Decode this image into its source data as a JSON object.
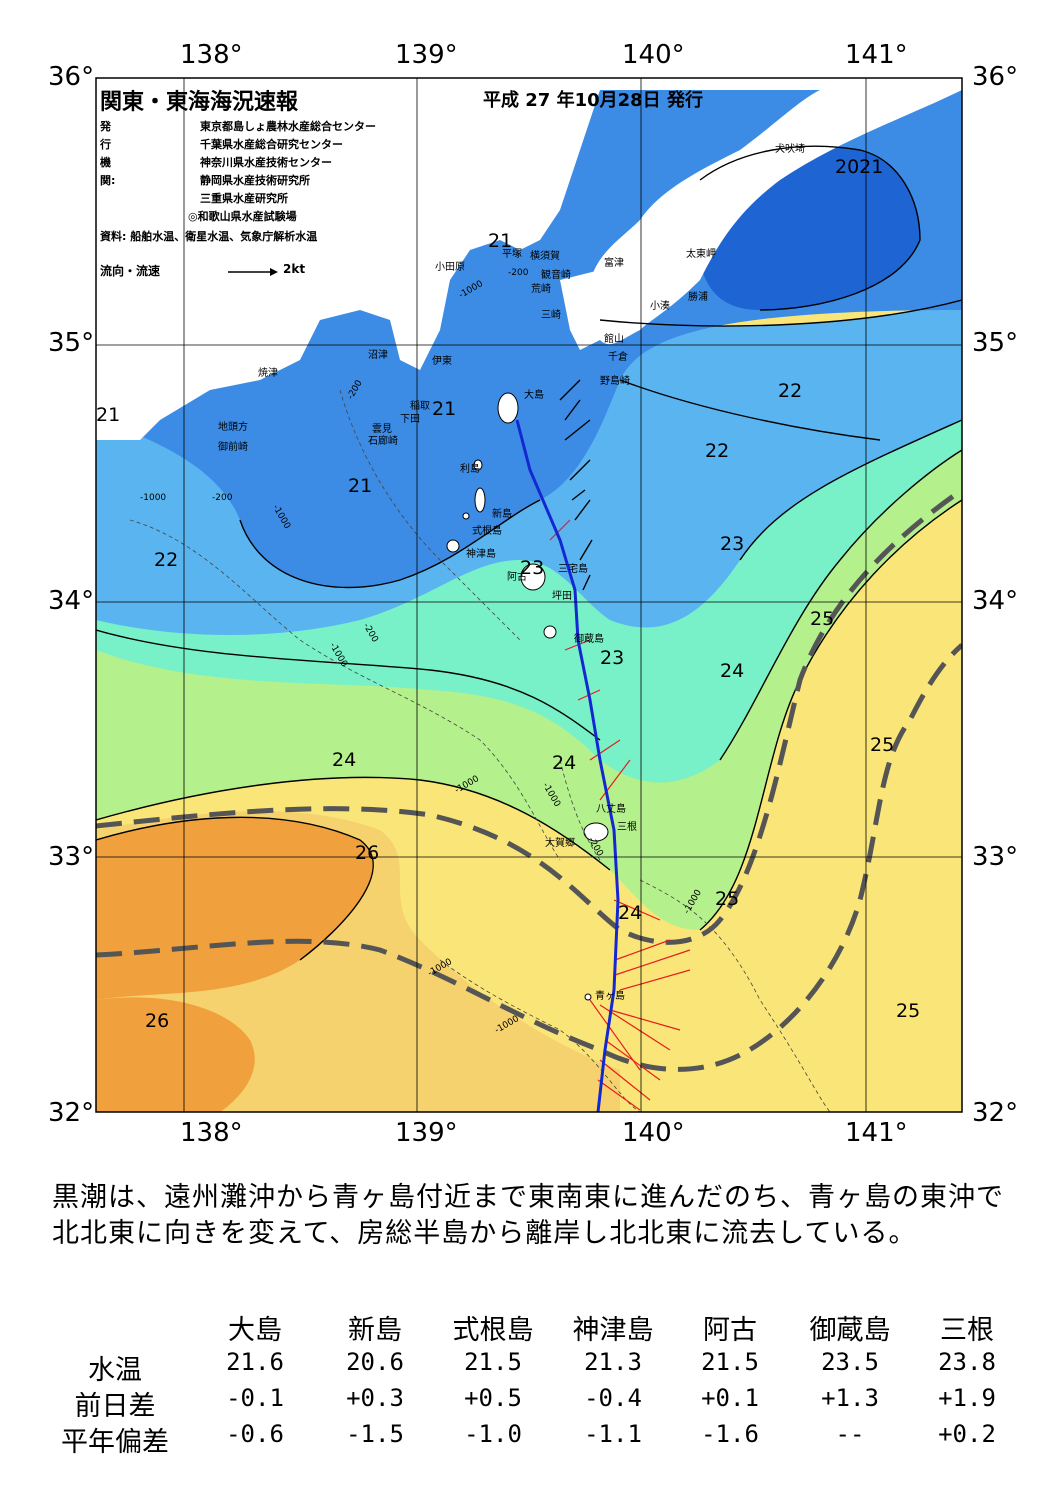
{
  "header": {
    "title": "関東・東海海況速報",
    "date": "平成 27 年10月28日 発行",
    "issuer_label": "発行機関:",
    "issuers": [
      "東京都島しょ農林水産総合センター",
      "千葉県水産総合研究センター",
      "神奈川県水産技術センター",
      "静岡県水産技術研究所",
      "三重県水産研究所",
      "◎和歌山県水産試験場"
    ],
    "source": "資料: 船舶水温、衛星水温、気象庁解析水温",
    "legend_label": "流向・流速",
    "legend_scale": "2kt"
  },
  "map": {
    "lon_ticks": [
      "138°",
      "139°",
      "140°",
      "141°"
    ],
    "lat_ticks": [
      "36°",
      "35°",
      "34°",
      "33°",
      "32°"
    ],
    "colors": {
      "land": "#ffffff",
      "t20": "#1e64d2",
      "t21": "#3c8ce6",
      "t22": "#5ab4f0",
      "t23": "#64dcd2",
      "t23b": "#78f0c8",
      "t24": "#8ce68c",
      "t24b": "#b4f08c",
      "t25": "#fae678",
      "t25b": "#f5d26e",
      "t26": "#f0b450",
      "t26b": "#f0a03c",
      "kuroshio_axis": "#1428d2",
      "current_arrow": "#e61e1e",
      "kuroshio_edge": "#555555"
    },
    "place_names": [
      "犬吠埼",
      "太東岬",
      "勝浦",
      "小湊",
      "富津",
      "横須賀",
      "観音崎",
      "平塚",
      "荒崎",
      "小田原",
      "三崎",
      "館山",
      "千倉",
      "野島崎",
      "沼津",
      "伊東",
      "稲取",
      "下田",
      "雲見",
      "石廊崎",
      "焼津",
      "地頭方",
      "御前崎",
      "大島",
      "利島",
      "新島",
      "式根島",
      "神津島",
      "阿古",
      "三宅島",
      "坪田",
      "御蔵島",
      "八丈島",
      "三根",
      "大賀郷",
      "青ヶ島"
    ],
    "isotherm_labels": [
      "2021",
      "21",
      "21",
      "21",
      "21",
      "22",
      "22",
      "22",
      "23",
      "23",
      "23",
      "24",
      "24",
      "24",
      "24",
      "25",
      "25",
      "25",
      "25",
      "26",
      "26"
    ],
    "depth_labels": [
      "-200",
      "-1000"
    ]
  },
  "summary": "黒潮は、遠州灘沖から青ヶ島付近まで東南東に進んだのち、青ヶ島の東沖で北北東に向きを変えて、房総半島から離岸し北北東に流去している。",
  "table": {
    "columns": [
      "大島",
      "新島",
      "式根島",
      "神津島",
      "阿古",
      "御蔵島",
      "三根"
    ],
    "rows": [
      {
        "label": "水温",
        "values": [
          "21.6",
          "20.6",
          "21.5",
          "21.3",
          "21.5",
          "23.5",
          "23.8"
        ]
      },
      {
        "label": "前日差",
        "values": [
          "-0.1",
          "+0.3",
          "+0.5",
          "-0.4",
          "+0.1",
          "+1.3",
          "+1.9"
        ]
      },
      {
        "label": "平年偏差",
        "values": [
          "-0.6",
          "-1.5",
          "-1.0",
          "-1.1",
          "-1.6",
          "--",
          "+0.2"
        ]
      }
    ]
  }
}
